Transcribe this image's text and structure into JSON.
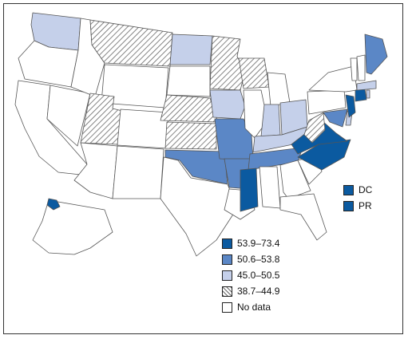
{
  "legend": [
    {
      "label": "53.9–73.4",
      "fill": "#0b5aa0"
    },
    {
      "label": "50.6–53.8",
      "fill": "#5b87c6"
    },
    {
      "label": "45.0–50.5",
      "fill": "#c5d0ea"
    },
    {
      "label": "38.7–44.9",
      "fill": "hatch"
    },
    {
      "label": "No data",
      "fill": "#ffffff"
    }
  ],
  "territories": [
    {
      "label": "DC",
      "fill": "#0b5aa0"
    },
    {
      "label": "PR",
      "fill": "#0b5aa0"
    }
  ],
  "map_data": {
    "WA": "45.0–50.5",
    "OR": "No data",
    "CA": "No data",
    "NV": "No data",
    "ID": "No data",
    "MT": "38.7–44.9",
    "WY": "No data",
    "UT": "38.7–44.9",
    "AZ": "No data",
    "CO": "No data",
    "NM": "No data",
    "ND": "45.0–50.5",
    "SD": "No data",
    "NE": "38.7–44.9",
    "KS": "38.7–44.9",
    "OK": "50.6–53.8",
    "TX": "No data",
    "MN": "38.7–44.9",
    "IA": "45.0–50.5",
    "MO": "50.6–53.8",
    "AR": "50.6–53.8",
    "LA": "No data",
    "WI": "38.7–44.9",
    "IL": "No data",
    "MI": "No data",
    "IN": "45.0–50.5",
    "OH": "45.0–50.5",
    "KY": "45.0–50.5",
    "TN": "50.6–53.8",
    "MS": "53.9–73.4",
    "AL": "No data",
    "GA": "No data",
    "FL": "No data",
    "SC": "No data",
    "NC": "53.9–73.4",
    "VA": "53.9–73.4",
    "WV": "38.7–44.9",
    "MD": "50.6–53.8",
    "DE": "45.0–50.5",
    "PA": "No data",
    "NJ": "53.9–73.4",
    "NY": "No data",
    "CT": "53.9–73.4",
    "RI": "45.0–50.5",
    "MA": "45.0–50.5",
    "VT": "No data",
    "NH": "No data",
    "ME": "50.6–53.8",
    "AK": "No data",
    "HI": "53.9–73.4"
  }
}
